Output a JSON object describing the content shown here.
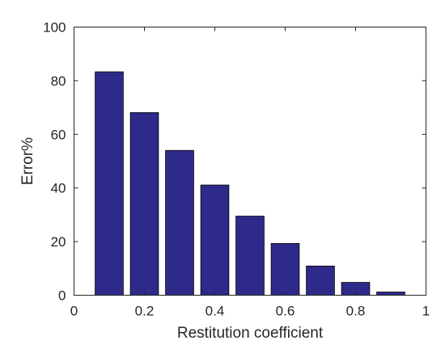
{
  "chart_data": {
    "type": "bar",
    "x": [
      0.1,
      0.2,
      0.3,
      0.4,
      0.5,
      0.6,
      0.7,
      0.8,
      0.9
    ],
    "values": [
      83.3,
      68.1,
      54.0,
      41.1,
      29.5,
      19.3,
      10.9,
      4.8,
      1.2
    ],
    "xlabel": "Restitution coefficient",
    "ylabel": "Error%",
    "xlim": [
      0,
      1
    ],
    "ylim": [
      0,
      100
    ],
    "xticks": [
      0,
      0.2,
      0.4,
      0.6,
      0.8,
      1
    ],
    "xtick_labels": [
      "0",
      "0.2",
      "0.4",
      "0.6",
      "0.8",
      "1"
    ],
    "yticks": [
      0,
      20,
      40,
      60,
      80,
      100
    ],
    "ytick_labels": [
      "0",
      "20",
      "40",
      "60",
      "80",
      "100"
    ],
    "bar_width": 0.08,
    "bar_color": "#2e2a8a",
    "grid": false,
    "legend": "none"
  }
}
